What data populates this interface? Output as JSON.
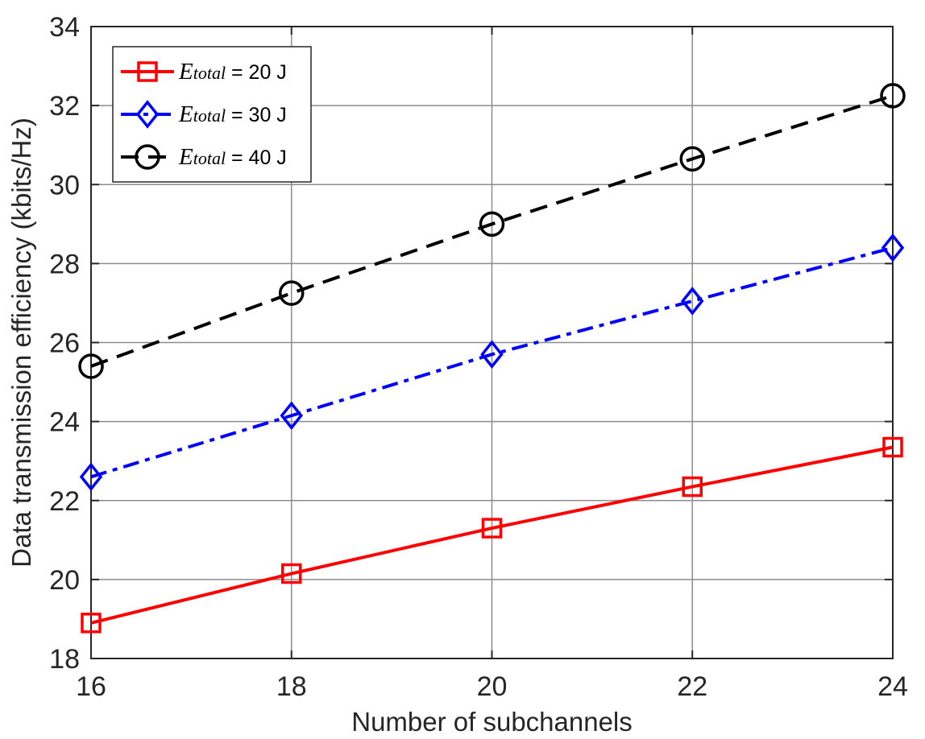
{
  "chart_data": {
    "type": "line",
    "title": "",
    "xlabel": "Number of subchannels",
    "ylabel": "Data transmission efficiency (kbits/Hz)",
    "x": [
      16,
      18,
      20,
      22,
      24
    ],
    "xlim": [
      16,
      24
    ],
    "ylim": [
      18,
      34
    ],
    "xticks": [
      16,
      18,
      20,
      22,
      24
    ],
    "yticks": [
      18,
      20,
      22,
      24,
      26,
      28,
      30,
      32,
      34
    ],
    "grid": true,
    "legend_position": "top-left",
    "series": [
      {
        "name": "E_total = 20 J",
        "legend": {
          "var": "E",
          "sub": "total",
          "suffix": " = 20 J"
        },
        "values": [
          18.9,
          20.15,
          21.3,
          22.35,
          23.35
        ],
        "color": "#ff0000",
        "line_style": "solid",
        "marker": "square"
      },
      {
        "name": "E_total = 30 J",
        "legend": {
          "var": "E",
          "sub": "total",
          "suffix": " = 30 J"
        },
        "values": [
          22.6,
          24.15,
          25.7,
          27.05,
          28.4
        ],
        "color": "#0000ff",
        "line_style": "dashdot",
        "marker": "diamond"
      },
      {
        "name": "E_total = 40 J",
        "legend": {
          "var": "E",
          "sub": "total",
          "suffix": " = 40 J"
        },
        "values": [
          25.4,
          27.25,
          29.0,
          30.65,
          32.25
        ],
        "color": "#000000",
        "line_style": "dashed",
        "marker": "circle"
      }
    ]
  }
}
